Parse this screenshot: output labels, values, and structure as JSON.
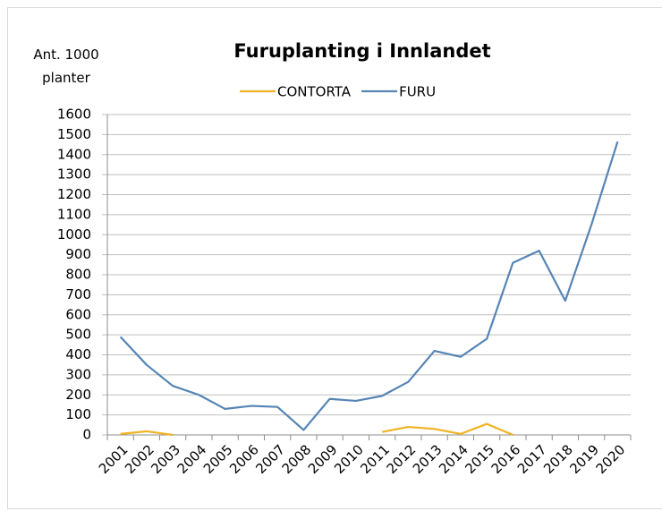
{
  "chart_data": {
    "type": "line",
    "title": "Furuplanting i Innlandet",
    "y_label": "Ant. 1000 planter",
    "categories": [
      "2001",
      "2002",
      "2003",
      "2004",
      "2005",
      "2006",
      "2007",
      "2008",
      "2009",
      "2010",
      "2011",
      "2012",
      "2013",
      "2014",
      "2015",
      "2016",
      "2017",
      "2018",
      "2019",
      "2020"
    ],
    "series": [
      {
        "name": "CONTORTA",
        "color": "#f0b323",
        "values": [
          5,
          18,
          0,
          null,
          null,
          null,
          null,
          null,
          null,
          null,
          15,
          40,
          30,
          5,
          55,
          0,
          null,
          null,
          null,
          null
        ]
      },
      {
        "name": "FURU",
        "color": "#5585b5",
        "values": [
          490,
          350,
          245,
          200,
          130,
          145,
          140,
          25,
          180,
          170,
          195,
          265,
          420,
          390,
          480,
          860,
          920,
          670,
          1050,
          1465
        ]
      }
    ],
    "ylim": [
      0,
      1600
    ],
    "yticks": [
      0,
      100,
      200,
      300,
      400,
      500,
      600,
      700,
      800,
      900,
      1000,
      1100,
      1200,
      1300,
      1400,
      1500,
      1600
    ],
    "grid": true,
    "legend": "top"
  }
}
